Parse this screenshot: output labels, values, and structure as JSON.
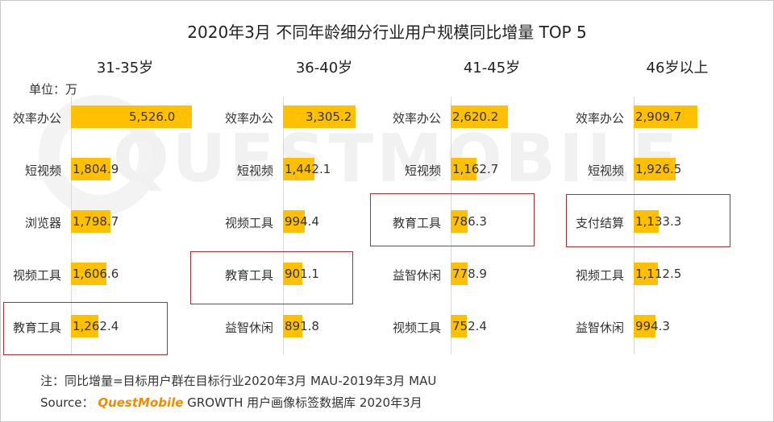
{
  "chart_data": {
    "type": "bar",
    "title": "2020年3月 不同年龄细分行业用户规模同比增量 TOP 5",
    "unit_label": "单位：万",
    "groups": [
      {
        "name": "31-35岁",
        "categories": [
          "效率办公",
          "短视频",
          "浏览器",
          "视频工具",
          "教育工具"
        ],
        "values": [
          5526.0,
          1804.9,
          1798.7,
          1606.6,
          1262.4
        ],
        "labels": [
          "5,526.0",
          "1,804.9",
          "1,798.7",
          "1,606.6",
          "1,262.4"
        ],
        "highlighted": "教育工具"
      },
      {
        "name": "36-40岁",
        "categories": [
          "效率办公",
          "短视频",
          "视频工具",
          "教育工具",
          "益智休闲"
        ],
        "values": [
          3305.2,
          1442.1,
          994.4,
          901.1,
          891.8
        ],
        "labels": [
          "3,305.2",
          "1,442.1",
          "994.4",
          "901.1",
          "891.8"
        ],
        "highlighted": "教育工具"
      },
      {
        "name": "41-45岁",
        "categories": [
          "效率办公",
          "短视频",
          "教育工具",
          "益智休闲",
          "视频工具"
        ],
        "values": [
          2620.2,
          1162.7,
          786.3,
          778.9,
          752.4
        ],
        "labels": [
          "2,620.2",
          "1,162.7",
          "786.3",
          "778.9",
          "752.4"
        ],
        "highlighted": "教育工具"
      },
      {
        "name": "46岁以上",
        "categories": [
          "效率办公",
          "短视频",
          "支付结算",
          "视频工具",
          "益智休闲"
        ],
        "values": [
          2909.7,
          1926.5,
          1133.3,
          1112.5,
          994.3
        ],
        "labels": [
          "2,909.7",
          "1,926.5",
          "1,133.3",
          "1,112.5",
          "994.3"
        ],
        "highlighted": "支付结算"
      }
    ],
    "bar_color": "#ffc000",
    "highlight_color": "#c0272d"
  },
  "footer": {
    "note": "注：同比增量=目标用户群在目标行业2020年3月 MAU-2019年3月 MAU",
    "source_prefix": "Source：",
    "source_brand": "QuestMobile",
    "source_rest": "GROWTH 用户画像标签数据库 2020年3月"
  },
  "watermark": "QUESTMOBILE"
}
